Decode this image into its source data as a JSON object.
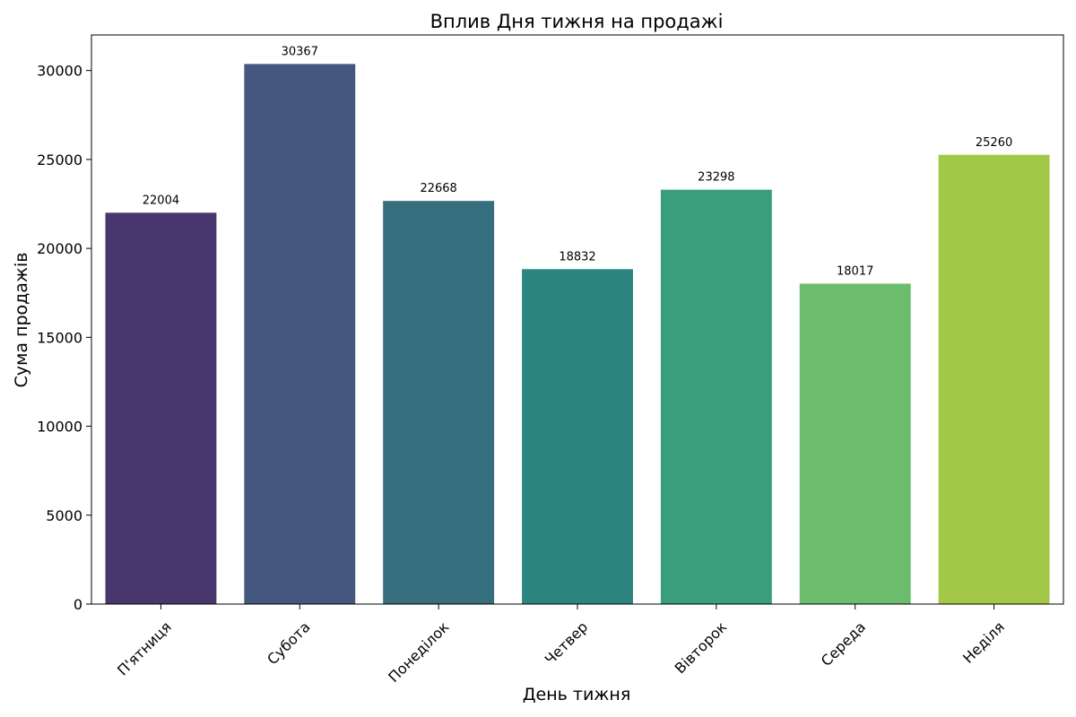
{
  "chart_data": {
    "type": "bar",
    "title": "Вплив Дня тижня на продажі",
    "xlabel": "День тижня",
    "ylabel": "Сума продажів",
    "categories": [
      "П'ятниця",
      "Субота",
      "Понеділок",
      "Четвер",
      "Вівторок",
      "Середа",
      "Неділя"
    ],
    "values": [
      22004,
      30367,
      22668,
      18832,
      23298,
      18017,
      25260
    ],
    "data_labels": [
      "22004",
      "30367",
      "22668",
      "18832",
      "23298",
      "18017",
      "25260"
    ],
    "colors": [
      "#48366f",
      "#44587f",
      "#376e7e",
      "#2d8580",
      "#3a9d7c",
      "#6bbc6c",
      "#a3c847"
    ],
    "ylim": [
      0,
      32000
    ],
    "yticks": [
      0,
      5000,
      10000,
      15000,
      20000,
      25000,
      30000
    ],
    "ytick_labels": [
      "0",
      "5000",
      "10000",
      "15000",
      "20000",
      "25000",
      "30000"
    ],
    "grid": false,
    "legend": "none"
  }
}
